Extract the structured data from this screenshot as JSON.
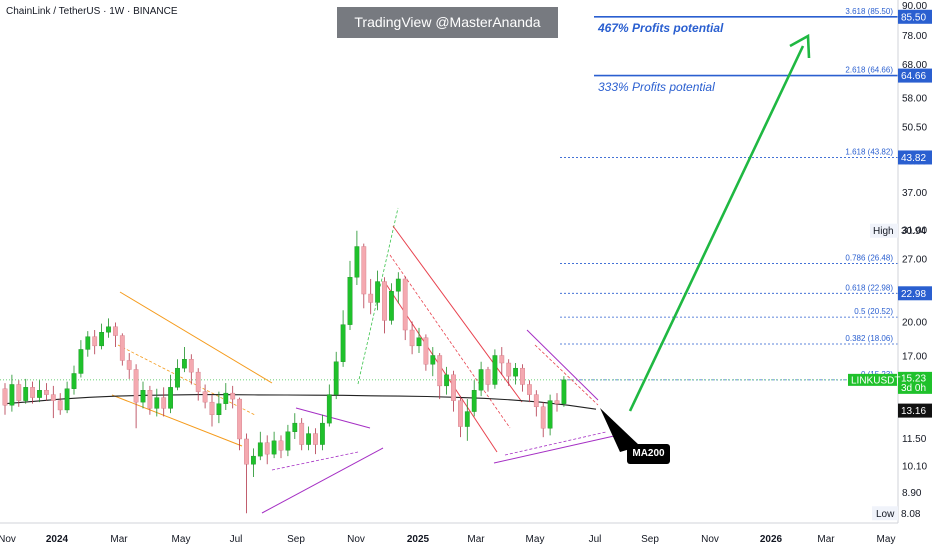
{
  "header": {
    "title": "ChainLink / TetherUS · 1W · BINANCE",
    "watermark": "TradingView @MasterAnanda"
  },
  "annotations": {
    "profit_467": "467% Profits potential",
    "profit_333": "333% Profits potential",
    "ma_label": "MA200"
  },
  "colors": {
    "up": "#1fc12b",
    "down": "#f4a9b0",
    "fib_blue": "#2a5fd0",
    "arrow": "#1fb842",
    "ma": "#222222",
    "orange": "#f59b1c",
    "purple": "#a52fc4",
    "red": "#e8424e"
  },
  "chart_data": {
    "type": "candlestick",
    "symbol": "LINKUSDT",
    "timeframe": "1W",
    "y_scale": "log",
    "ylim": [
      7.9,
      90
    ],
    "y_ticks": [
      "90.00",
      "78.00",
      "68.00",
      "58.00",
      "50.50",
      "43.00",
      "37.00",
      "31.00",
      "27.00",
      "23.00",
      "20.00",
      "17.00",
      "14.50",
      "11.50",
      "10.10",
      "8.90"
    ],
    "x_ticks": [
      "Nov",
      "2024",
      "Mar",
      "May",
      "Jul",
      "Sep",
      "Nov",
      "2025",
      "Mar",
      "May",
      "Jul",
      "Sep",
      "Nov",
      "2026",
      "Mar",
      "May"
    ],
    "fib_levels": [
      {
        "label": "3.618 (85.50)",
        "value": 85.5
      },
      {
        "label": "2.618 (64.66)",
        "value": 64.66
      },
      {
        "label": "1.618 (43.82)",
        "value": 43.82
      },
      {
        "label": "0.786 (26.48)",
        "value": 26.48
      },
      {
        "label": "0.618 (22.98)",
        "value": 22.98
      },
      {
        "label": "0.5 (20.52)",
        "value": 20.52
      },
      {
        "label": "0.382 (18.06)",
        "value": 18.06
      },
      {
        "label": "0 (15.23)",
        "value": 15.23
      }
    ],
    "price_tags": [
      {
        "text": "85.50",
        "value": 85.5
      },
      {
        "text": "64.66",
        "value": 64.66
      },
      {
        "text": "43.82",
        "value": 43.82
      },
      {
        "text": "22.98",
        "value": 22.98
      },
      {
        "text": "13.16",
        "value": 13.16
      }
    ],
    "current": {
      "symbol": "LINKUSDT",
      "price": "15.23",
      "countdown": "3d 0h"
    },
    "high": {
      "label": "High",
      "value": "30.94"
    },
    "low": {
      "label": "Low",
      "value": "8.08"
    },
    "candles": [
      [
        14.6,
        13.5,
        15.0,
        12.9
      ],
      [
        13.5,
        14.9,
        15.6,
        13.1
      ],
      [
        14.9,
        13.8,
        15.2,
        13.4
      ],
      [
        13.8,
        14.7,
        15.3,
        13.6
      ],
      [
        14.7,
        14.0,
        15.1,
        13.6
      ],
      [
        14.0,
        14.5,
        15.2,
        13.7
      ],
      [
        14.5,
        14.2,
        15.0,
        13.8
      ],
      [
        14.2,
        13.8,
        14.8,
        12.7
      ],
      [
        13.8,
        13.2,
        14.3,
        12.9
      ],
      [
        13.2,
        14.6,
        15.1,
        13.0
      ],
      [
        14.6,
        15.7,
        16.3,
        14.2
      ],
      [
        15.7,
        17.6,
        18.4,
        15.4
      ],
      [
        17.6,
        18.7,
        19.2,
        17.0
      ],
      [
        18.7,
        17.9,
        19.3,
        17.2
      ],
      [
        17.9,
        19.1,
        19.9,
        17.6
      ],
      [
        19.1,
        19.6,
        20.4,
        18.6
      ],
      [
        19.6,
        18.8,
        20.0,
        17.8
      ],
      [
        18.8,
        16.7,
        19.0,
        16.3
      ],
      [
        16.7,
        16.0,
        17.3,
        15.3
      ],
      [
        16.0,
        13.7,
        16.4,
        12.1
      ],
      [
        13.7,
        14.5,
        15.1,
        13.3
      ],
      [
        14.5,
        13.3,
        14.8,
        12.9
      ],
      [
        13.3,
        14.0,
        14.6,
        12.8
      ],
      [
        14.0,
        13.3,
        14.7,
        12.8
      ],
      [
        13.3,
        14.7,
        15.6,
        13.0
      ],
      [
        14.7,
        16.1,
        16.8,
        14.5
      ],
      [
        16.1,
        16.8,
        17.8,
        15.8
      ],
      [
        16.8,
        15.8,
        17.2,
        14.9
      ],
      [
        15.8,
        14.4,
        16.1,
        13.8
      ],
      [
        14.4,
        13.7,
        14.9,
        13.3
      ],
      [
        13.7,
        12.9,
        14.2,
        12.2
      ],
      [
        12.9,
        13.6,
        14.4,
        12.4
      ],
      [
        13.6,
        14.3,
        15.0,
        13.2
      ],
      [
        14.3,
        13.9,
        14.8,
        13.3
      ],
      [
        13.9,
        11.5,
        14.0,
        10.9
      ],
      [
        11.5,
        10.2,
        11.8,
        8.08
      ],
      [
        10.2,
        10.6,
        11.0,
        9.6
      ],
      [
        10.6,
        11.3,
        11.9,
        10.4
      ],
      [
        11.3,
        10.7,
        11.7,
        10.2
      ],
      [
        10.7,
        11.4,
        11.9,
        10.5
      ],
      [
        11.4,
        10.9,
        11.7,
        10.5
      ],
      [
        10.9,
        11.9,
        12.3,
        10.6
      ],
      [
        11.9,
        12.4,
        13.0,
        11.5
      ],
      [
        12.4,
        11.2,
        12.7,
        10.9
      ],
      [
        11.2,
        11.8,
        12.2,
        10.9
      ],
      [
        11.8,
        11.2,
        12.1,
        10.7
      ],
      [
        11.2,
        12.4,
        12.9,
        10.9
      ],
      [
        12.4,
        14.2,
        14.9,
        12.2
      ],
      [
        14.2,
        16.6,
        17.4,
        13.9
      ],
      [
        16.6,
        19.8,
        21.2,
        16.2
      ],
      [
        19.8,
        24.8,
        26.8,
        19.3
      ],
      [
        24.8,
        28.7,
        30.94,
        23.9
      ],
      [
        28.7,
        22.9,
        29.1,
        21.4
      ],
      [
        22.9,
        22.0,
        24.6,
        20.8
      ],
      [
        22.0,
        24.3,
        25.6,
        21.2
      ],
      [
        24.3,
        20.2,
        24.8,
        19.0
      ],
      [
        20.2,
        23.2,
        24.1,
        19.8
      ],
      [
        23.2,
        24.6,
        25.4,
        21.9
      ],
      [
        24.6,
        19.3,
        24.9,
        18.4
      ],
      [
        19.3,
        17.9,
        20.1,
        17.2
      ],
      [
        17.9,
        18.6,
        19.5,
        17.3
      ],
      [
        18.6,
        16.4,
        18.9,
        15.9
      ],
      [
        16.4,
        17.1,
        17.8,
        15.5
      ],
      [
        17.1,
        14.8,
        17.3,
        13.9
      ],
      [
        14.8,
        15.6,
        16.2,
        14.2
      ],
      [
        15.6,
        13.8,
        15.9,
        13.1
      ],
      [
        13.8,
        12.2,
        14.1,
        11.6
      ],
      [
        12.2,
        13.1,
        13.9,
        11.4
      ],
      [
        13.1,
        14.5,
        15.2,
        12.8
      ],
      [
        14.5,
        16.0,
        16.6,
        14.1
      ],
      [
        16.0,
        14.9,
        16.2,
        14.4
      ],
      [
        14.9,
        17.1,
        17.6,
        14.6
      ],
      [
        17.1,
        16.5,
        17.8,
        15.6
      ],
      [
        16.5,
        15.5,
        16.8,
        14.8
      ],
      [
        15.5,
        16.1,
        16.5,
        14.9
      ],
      [
        16.1,
        14.9,
        16.4,
        14.4
      ],
      [
        14.9,
        14.2,
        15.2,
        13.7
      ],
      [
        14.2,
        13.4,
        14.5,
        12.8
      ],
      [
        13.4,
        12.1,
        13.7,
        11.6
      ],
      [
        12.1,
        13.8,
        14.2,
        11.7
      ],
      [
        13.8,
        13.6,
        14.3,
        13.1
      ],
      [
        13.6,
        15.23,
        15.5,
        13.4
      ]
    ],
    "ma200": [
      13.6,
      13.75,
      13.9,
      14.02,
      14.1,
      14.15,
      14.18,
      14.2,
      14.19,
      14.18,
      14.17,
      14.16,
      14.15,
      14.12,
      14.1,
      14.07,
      14.02,
      13.95,
      13.85,
      13.7,
      13.5,
      13.25
    ]
  }
}
